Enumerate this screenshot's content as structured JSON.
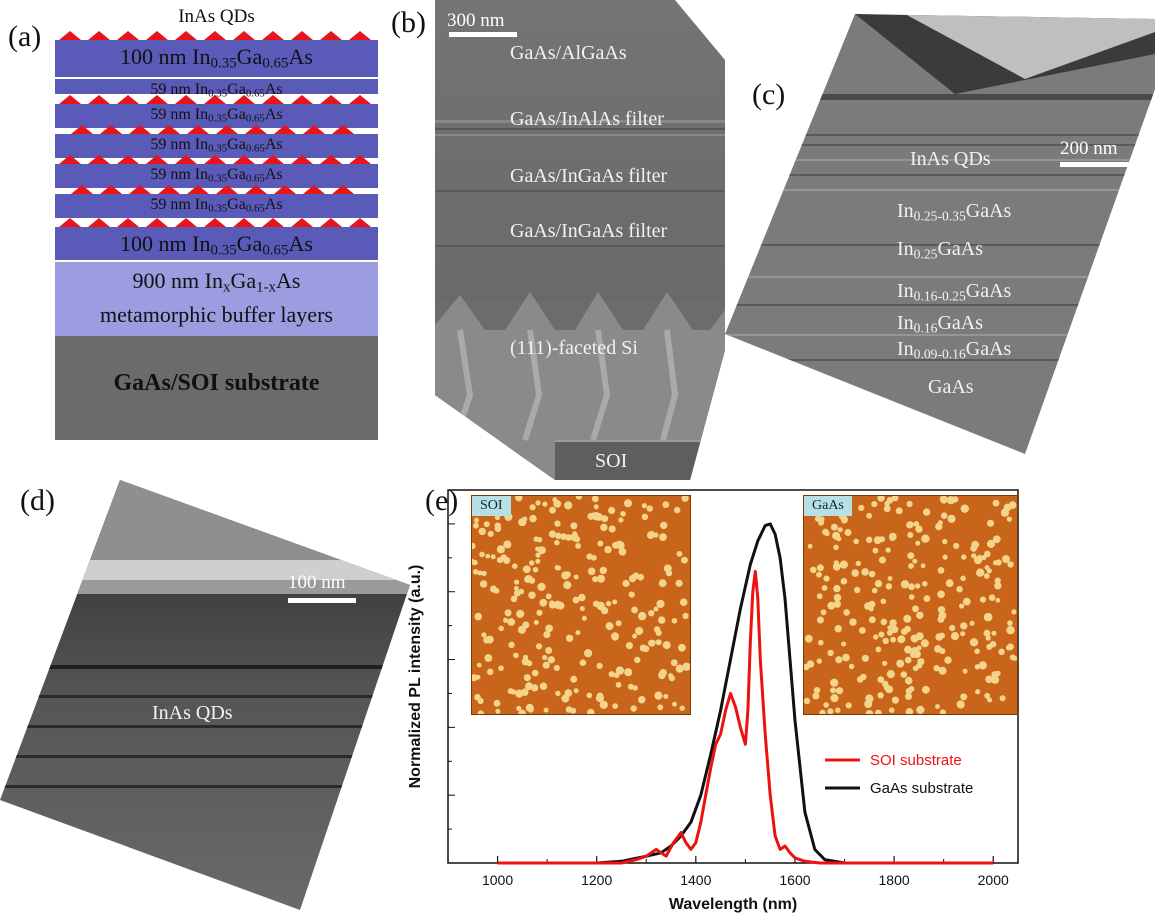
{
  "panel_a": {
    "label": "(a)",
    "top_label": "InAs QDs",
    "layers": [
      {
        "pre": "100 nm In",
        "s1": "0.35",
        "mid": "Ga",
        "s2": "0.65",
        "post": "As"
      },
      {
        "pre": "59 nm In",
        "s1": "0.35",
        "mid": "Ga",
        "s2": "0.65",
        "post": "As"
      },
      {
        "pre": "59 nm In",
        "s1": "0.35",
        "mid": "Ga",
        "s2": "0.65",
        "post": "As"
      },
      {
        "pre": "59 nm In",
        "s1": "0.35",
        "mid": "Ga",
        "s2": "0.65",
        "post": "As"
      },
      {
        "pre": "59 nm In",
        "s1": "0.35",
        "mid": "Ga",
        "s2": "0.65",
        "post": "As"
      },
      {
        "pre": "59 nm In",
        "s1": "0.35",
        "mid": "Ga",
        "s2": "0.65",
        "post": "As"
      },
      {
        "pre": "100 nm In",
        "s1": "0.35",
        "mid": "Ga",
        "s2": "0.65",
        "post": "As"
      }
    ],
    "buffer": {
      "pre": "900 nm In",
      "s1": "x",
      "mid": "Ga",
      "s2": "1-x",
      "post": "As",
      "line2": "metamorphic buffer layers"
    },
    "substrate": "GaAs/SOI substrate",
    "colors": {
      "qd": "#e8141c",
      "layer": "#5a5ab8",
      "buffer": "#9c9ce0",
      "substrate": "#6b6b6b"
    }
  },
  "panel_b": {
    "label": "(b)",
    "scale": "300 nm",
    "layers": [
      "GaAs/AlGaAs",
      "GaAs/InAlAs filter",
      "GaAs/InGaAs filter",
      "GaAs/InGaAs filter",
      "(111)-faceted Si",
      "SOI"
    ]
  },
  "panel_c": {
    "label": "(c)",
    "scale": "200 nm",
    "qd_label": "InAs QDs",
    "layers": [
      {
        "pre": "In",
        "sub": "0.25-0.35",
        "post": "GaAs"
      },
      {
        "pre": "In",
        "sub": "0.25",
        "post": "GaAs"
      },
      {
        "pre": "In",
        "sub": "0.16-0.25",
        "post": "GaAs"
      },
      {
        "pre": "In",
        "sub": "0.16",
        "post": "GaAs"
      },
      {
        "pre": "In",
        "sub": "0.09-0.16",
        "post": "GaAs"
      },
      {
        "pre": "GaAs",
        "sub": "",
        "post": ""
      }
    ]
  },
  "panel_d": {
    "label": "(d)",
    "scale": "100 nm",
    "qd_label": "InAs QDs"
  },
  "panel_e": {
    "label": "(e)",
    "inset_left": "SOI",
    "inset_right": "GaAs"
  },
  "chart_data": {
    "type": "line",
    "xlabel": "Wavelength (nm)",
    "ylabel": "Normalized PL intensity (a.u.)",
    "xlim": [
      900,
      2050
    ],
    "ylim": [
      0,
      1.1
    ],
    "xticks": [
      1000,
      1200,
      1400,
      1600,
      1800,
      2000
    ],
    "series": [
      {
        "name": "SOI substrate",
        "color": "#ee1111",
        "x": [
          1000,
          1250,
          1280,
          1300,
          1320,
          1340,
          1355,
          1370,
          1380,
          1390,
          1400,
          1410,
          1420,
          1430,
          1440,
          1450,
          1460,
          1470,
          1480,
          1490,
          1500,
          1505,
          1510,
          1515,
          1520,
          1525,
          1530,
          1540,
          1550,
          1560,
          1570,
          1580,
          1590,
          1600,
          1620,
          1650,
          2000
        ],
        "y": [
          0.0,
          0.0,
          0.01,
          0.02,
          0.04,
          0.02,
          0.06,
          0.09,
          0.06,
          0.04,
          0.06,
          0.12,
          0.2,
          0.28,
          0.35,
          0.38,
          0.45,
          0.5,
          0.46,
          0.4,
          0.35,
          0.45,
          0.65,
          0.8,
          0.86,
          0.78,
          0.6,
          0.38,
          0.2,
          0.08,
          0.04,
          0.05,
          0.03,
          0.015,
          0.005,
          0.0,
          0.0
        ]
      },
      {
        "name": "GaAs substrate",
        "color": "#111111",
        "x": [
          1000,
          1200,
          1250,
          1300,
          1330,
          1350,
          1370,
          1390,
          1410,
          1430,
          1450,
          1470,
          1490,
          1510,
          1525,
          1540,
          1550,
          1560,
          1570,
          1580,
          1590,
          1600,
          1620,
          1640,
          1660,
          1700,
          2000
        ],
        "y": [
          0.0,
          0.0,
          0.005,
          0.02,
          0.03,
          0.05,
          0.08,
          0.12,
          0.2,
          0.32,
          0.45,
          0.6,
          0.75,
          0.88,
          0.95,
          0.995,
          1.0,
          0.97,
          0.9,
          0.78,
          0.6,
          0.42,
          0.15,
          0.04,
          0.01,
          0.0,
          0.0
        ]
      }
    ]
  }
}
